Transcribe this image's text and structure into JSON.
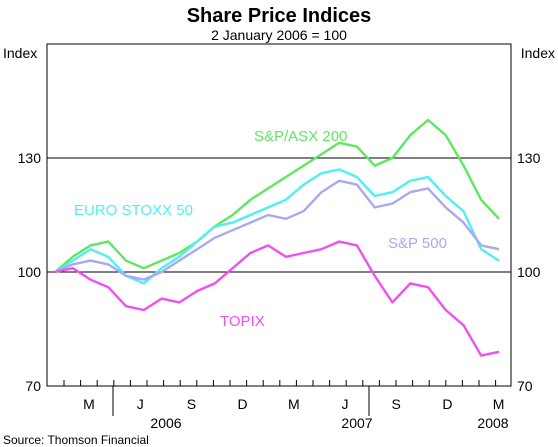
{
  "chart_data": {
    "type": "line",
    "title": "Share Price Indices",
    "subtitle": "2 January 2006 = 100",
    "ylabel_left": "Index",
    "ylabel_right": "Index",
    "source": "Source: Thomson Financial",
    "ylim": [
      70,
      160
    ],
    "yticks": [
      70,
      100,
      130
    ],
    "grid": true,
    "x_month_labels": [
      "M",
      "J",
      "S",
      "D",
      "M",
      "J",
      "S",
      "D",
      "M"
    ],
    "x_year_labels": [
      "2006",
      "2007",
      "2008"
    ],
    "x_months": [
      "2006-01",
      "2006-02",
      "2006-03",
      "2006-04",
      "2006-05",
      "2006-06",
      "2006-07",
      "2006-08",
      "2006-09",
      "2006-10",
      "2006-11",
      "2006-12",
      "2007-01",
      "2007-02",
      "2007-03",
      "2007-04",
      "2007-05",
      "2007-06",
      "2007-07",
      "2007-08",
      "2007-09",
      "2007-10",
      "2007-11",
      "2007-12",
      "2008-01",
      "2008-02"
    ],
    "series": [
      {
        "name": "S&P/ASX 200",
        "color": "#5ee85e",
        "values": [
          100,
          104,
          107,
          108,
          103,
          101,
          103,
          105,
          108,
          112,
          115,
          119,
          122,
          125,
          128,
          131,
          134,
          133,
          128,
          130,
          136,
          140,
          136,
          128,
          119,
          114
        ]
      },
      {
        "name": "EURO STOXX 50",
        "color": "#4ef0f0",
        "values": [
          100,
          103,
          106,
          104,
          99,
          97,
          101,
          104,
          108,
          112,
          113,
          115,
          117,
          119,
          123,
          126,
          127,
          125,
          120,
          121,
          124,
          125,
          120,
          116,
          106,
          103
        ]
      },
      {
        "name": "S&P 500",
        "color": "#a9a9f0",
        "values": [
          100,
          102,
          103,
          102,
          99,
          98,
          100,
          103,
          106,
          109,
          111,
          113,
          115,
          114,
          116,
          121,
          124,
          123,
          117,
          118,
          121,
          122,
          117,
          113,
          107,
          106
        ]
      },
      {
        "name": "TOPIX",
        "color": "#f050f0",
        "values": [
          100,
          101,
          98,
          96,
          91,
          90,
          93,
          92,
          95,
          97,
          101,
          105,
          107,
          104,
          105,
          106,
          108,
          107,
          99,
          92,
          97,
          96,
          90,
          86,
          78,
          79
        ]
      }
    ]
  }
}
